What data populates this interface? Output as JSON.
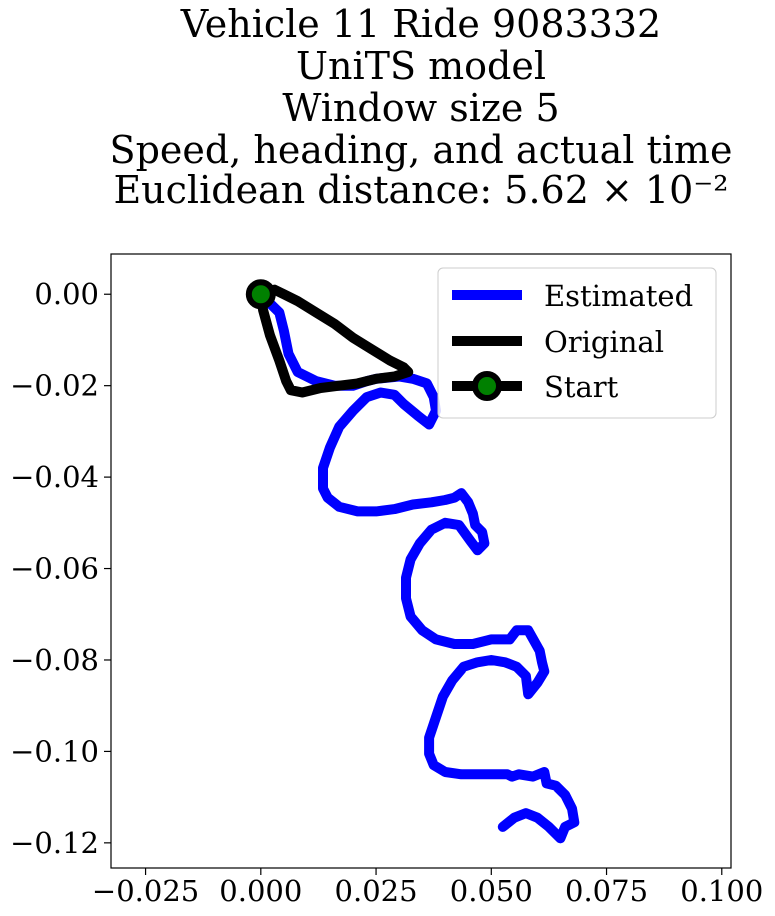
{
  "chart_data": {
    "type": "line",
    "title_lines": [
      "Vehicle 11 Ride 9083332",
      "UniTS model",
      "Window size 5",
      "Speed, heading, and actual time",
      "Euclidean distance: 5.62 × 10⁻²"
    ],
    "xlabel": "",
    "ylabel": "",
    "xlim": [
      -0.0325,
      0.102
    ],
    "ylim": [
      -0.1255,
      0.0088
    ],
    "x_ticks": [
      -0.025,
      0.0,
      0.025,
      0.05,
      0.075,
      0.1
    ],
    "x_tick_labels": [
      "−0.025",
      "0.000",
      "0.025",
      "0.050",
      "0.075",
      "0.100"
    ],
    "y_ticks": [
      0.0,
      -0.02,
      -0.04,
      -0.06,
      -0.08,
      -0.1,
      -0.12
    ],
    "y_tick_labels": [
      "0.00",
      "−0.02",
      "−0.04",
      "−0.06",
      "−0.08",
      "−0.10",
      "−0.12"
    ],
    "grid": false,
    "legend_position": "top-right",
    "series": [
      {
        "name": "Estimated",
        "color": "#0000ff",
        "x": [
          0.0,
          0.002,
          0.004,
          0.005,
          0.006,
          0.008,
          0.012,
          0.016,
          0.02,
          0.023,
          0.025,
          0.03,
          0.033,
          0.036,
          0.0375,
          0.038,
          0.0365,
          0.034,
          0.031,
          0.029,
          0.026,
          0.023,
          0.02,
          0.017,
          0.015,
          0.0135,
          0.0135,
          0.0145,
          0.017,
          0.021,
          0.025,
          0.029,
          0.033,
          0.037,
          0.04,
          0.042,
          0.0435,
          0.045,
          0.046,
          0.0465,
          0.048,
          0.0485,
          0.047,
          0.0455,
          0.043,
          0.04,
          0.037,
          0.0345,
          0.0325,
          0.0315,
          0.0315,
          0.0325,
          0.035,
          0.038,
          0.042,
          0.046,
          0.05,
          0.054,
          0.0555,
          0.058,
          0.0605,
          0.061,
          0.0615,
          0.06,
          0.058,
          0.0575,
          0.0555,
          0.053,
          0.05,
          0.047,
          0.044,
          0.0415,
          0.0395,
          0.038,
          0.0365,
          0.0365,
          0.0375,
          0.04,
          0.0435,
          0.0475,
          0.051,
          0.0535,
          0.0545,
          0.056,
          0.059,
          0.0615,
          0.062,
          0.064,
          0.066,
          0.0675,
          0.068,
          0.066,
          0.065,
          0.0625,
          0.06,
          0.0575,
          0.055,
          0.0525
        ],
        "y": [
          0.0,
          -0.002,
          -0.004,
          -0.008,
          -0.013,
          -0.017,
          -0.019,
          -0.02,
          -0.02,
          -0.019,
          -0.0185,
          -0.018,
          -0.0185,
          -0.0195,
          -0.0225,
          -0.0255,
          -0.0285,
          -0.0265,
          -0.024,
          -0.022,
          -0.0215,
          -0.0225,
          -0.0255,
          -0.029,
          -0.0335,
          -0.038,
          -0.0425,
          -0.0445,
          -0.0465,
          -0.0475,
          -0.0475,
          -0.047,
          -0.046,
          -0.0455,
          -0.045,
          -0.0445,
          -0.0435,
          -0.0455,
          -0.048,
          -0.0505,
          -0.052,
          -0.0545,
          -0.056,
          -0.054,
          -0.0505,
          -0.05,
          -0.0515,
          -0.0545,
          -0.058,
          -0.062,
          -0.0665,
          -0.0705,
          -0.0735,
          -0.0755,
          -0.0765,
          -0.0765,
          -0.0755,
          -0.0755,
          -0.0735,
          -0.0735,
          -0.078,
          -0.0805,
          -0.0825,
          -0.085,
          -0.0875,
          -0.0835,
          -0.0815,
          -0.0805,
          -0.08,
          -0.0805,
          -0.0815,
          -0.0845,
          -0.088,
          -0.0925,
          -0.097,
          -0.1005,
          -0.103,
          -0.1045,
          -0.105,
          -0.105,
          -0.105,
          -0.105,
          -0.1055,
          -0.105,
          -0.1055,
          -0.1045,
          -0.107,
          -0.1075,
          -0.1095,
          -0.1125,
          -0.1155,
          -0.1165,
          -0.119,
          -0.1165,
          -0.1145,
          -0.1135,
          -0.1145,
          -0.1165
        ]
      },
      {
        "name": "Original",
        "color": "#000000",
        "x": [
          0.0,
          0.0015,
          0.003,
          0.005,
          0.008,
          0.012,
          0.016,
          0.02,
          0.024,
          0.028,
          0.031,
          0.032,
          0.029,
          0.025,
          0.021,
          0.017,
          0.013,
          0.009,
          0.0065,
          0.0055,
          0.004,
          0.002,
          0.0005,
          0.0
        ],
        "y": [
          0.0,
          0.0005,
          0.001,
          0.0,
          -0.0015,
          -0.004,
          -0.0065,
          -0.0095,
          -0.012,
          -0.0145,
          -0.016,
          -0.017,
          -0.018,
          -0.0185,
          -0.0195,
          -0.02,
          -0.0205,
          -0.0215,
          -0.021,
          -0.019,
          -0.0145,
          -0.009,
          -0.0035,
          0.0
        ]
      },
      {
        "name": "Start",
        "color": "#000000",
        "marker_color": "#008000",
        "x": [
          0.0
        ],
        "y": [
          0.0
        ]
      }
    ]
  }
}
